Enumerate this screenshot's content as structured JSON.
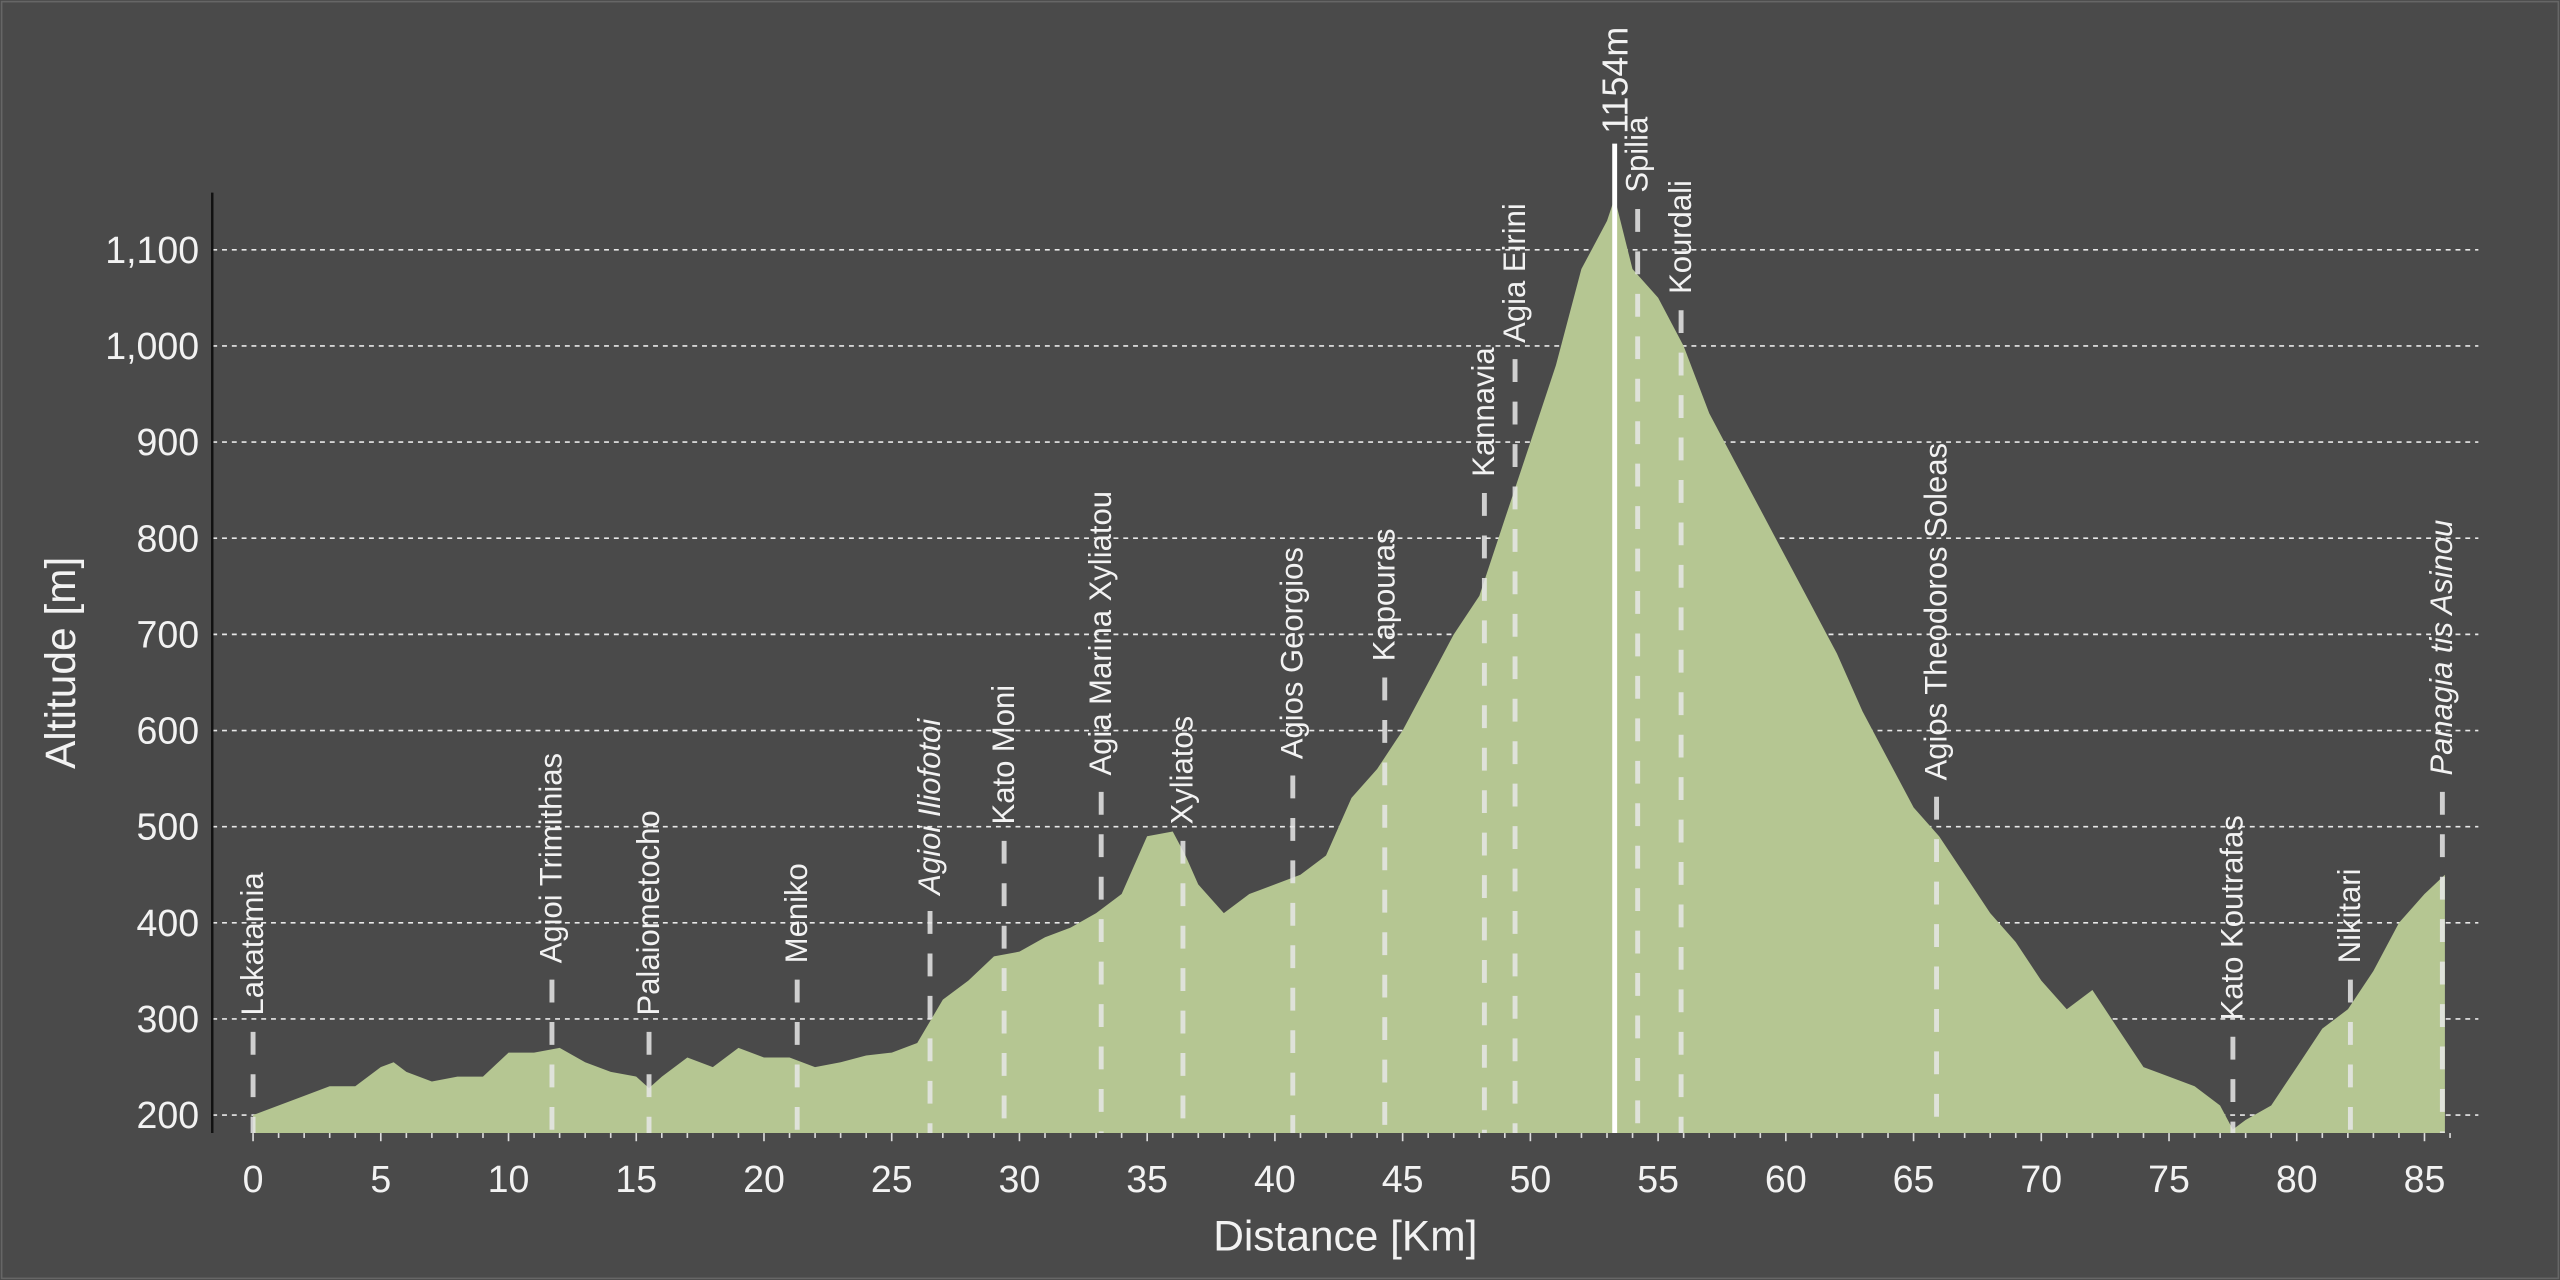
{
  "chart_data": {
    "type": "area",
    "title": "",
    "xlabel": "Distance [Km]",
    "ylabel": "Altitude [m]",
    "xlim": [
      0,
      86
    ],
    "ylim": [
      180,
      1160
    ],
    "grid": "horizontal dashed",
    "x_ticks": [
      0,
      5,
      10,
      15,
      20,
      25,
      30,
      35,
      40,
      45,
      50,
      55,
      60,
      65,
      70,
      75,
      80,
      85
    ],
    "y_ticks": [
      200,
      300,
      400,
      500,
      600,
      700,
      800,
      900,
      1000,
      1100
    ],
    "y_tick_labels": [
      "200",
      "300",
      "400",
      "500",
      "600",
      "700",
      "800",
      "900",
      "1,000",
      "1,100"
    ],
    "peak": {
      "distance": 53.3,
      "altitude": 1154,
      "label": "1154m"
    },
    "fill_color": "#b5c692",
    "background_color": "#4a4a4a",
    "profile": [
      [
        0,
        200
      ],
      [
        1,
        210
      ],
      [
        2,
        220
      ],
      [
        3,
        230
      ],
      [
        4,
        230
      ],
      [
        5,
        250
      ],
      [
        5.5,
        255
      ],
      [
        6,
        245
      ],
      [
        7,
        235
      ],
      [
        8,
        240
      ],
      [
        9,
        240
      ],
      [
        10,
        265
      ],
      [
        11,
        265
      ],
      [
        12,
        270
      ],
      [
        13,
        255
      ],
      [
        14,
        245
      ],
      [
        15,
        240
      ],
      [
        15.5,
        228
      ],
      [
        16,
        240
      ],
      [
        17,
        260
      ],
      [
        18,
        250
      ],
      [
        19,
        270
      ],
      [
        20,
        260
      ],
      [
        21,
        260
      ],
      [
        22,
        250
      ],
      [
        23,
        255
      ],
      [
        24,
        262
      ],
      [
        25,
        265
      ],
      [
        26,
        275
      ],
      [
        27,
        320
      ],
      [
        28,
        340
      ],
      [
        29,
        365
      ],
      [
        30,
        370
      ],
      [
        31,
        385
      ],
      [
        32,
        395
      ],
      [
        33,
        410
      ],
      [
        34,
        430
      ],
      [
        35,
        490
      ],
      [
        36,
        495
      ],
      [
        36.5,
        470
      ],
      [
        37,
        440
      ],
      [
        38,
        410
      ],
      [
        39,
        430
      ],
      [
        40,
        440
      ],
      [
        41,
        450
      ],
      [
        42,
        470
      ],
      [
        43,
        530
      ],
      [
        44,
        560
      ],
      [
        45,
        600
      ],
      [
        46,
        650
      ],
      [
        47,
        700
      ],
      [
        48,
        740
      ],
      [
        49,
        820
      ],
      [
        50,
        900
      ],
      [
        51,
        980
      ],
      [
        52,
        1080
      ],
      [
        53,
        1130
      ],
      [
        53.3,
        1154
      ],
      [
        54,
        1080
      ],
      [
        55,
        1050
      ],
      [
        56,
        1000
      ],
      [
        57,
        930
      ],
      [
        58,
        880
      ],
      [
        59,
        830
      ],
      [
        60,
        780
      ],
      [
        61,
        730
      ],
      [
        62,
        680
      ],
      [
        63,
        620
      ],
      [
        64,
        570
      ],
      [
        65,
        520
      ],
      [
        66,
        490
      ],
      [
        67,
        450
      ],
      [
        68,
        410
      ],
      [
        69,
        380
      ],
      [
        70,
        340
      ],
      [
        71,
        310
      ],
      [
        72,
        330
      ],
      [
        73,
        290
      ],
      [
        74,
        250
      ],
      [
        75,
        240
      ],
      [
        76,
        230
      ],
      [
        77,
        210
      ],
      [
        77.5,
        185
      ],
      [
        78,
        195
      ],
      [
        79,
        210
      ],
      [
        80,
        250
      ],
      [
        81,
        290
      ],
      [
        82,
        310
      ],
      [
        83,
        350
      ],
      [
        84,
        400
      ],
      [
        85,
        430
      ],
      [
        85.8,
        450
      ]
    ],
    "waypoints": [
      {
        "name": "Lakatamia",
        "km": 0,
        "italic": false
      },
      {
        "name": "Agioi Trimithias",
        "km": 11.7,
        "italic": false
      },
      {
        "name": "Palaiometocho",
        "km": 15.5,
        "italic": false
      },
      {
        "name": "Meniko",
        "km": 21.3,
        "italic": false
      },
      {
        "name": "Agioi Iliofotoi",
        "km": 26.5,
        "italic": true
      },
      {
        "name": "Kato Moni",
        "km": 29.4,
        "italic": false
      },
      {
        "name": "Agia Marina Xyliatou",
        "km": 33.2,
        "italic": false
      },
      {
        "name": "Xyliatos",
        "km": 36.4,
        "italic": false
      },
      {
        "name": "Agios Georgios",
        "km": 40.7,
        "italic": false
      },
      {
        "name": "Kapouras",
        "km": 44.3,
        "italic": false
      },
      {
        "name": "Kannavia",
        "km": 48.2,
        "italic": false
      },
      {
        "name": "Agia Eirini",
        "km": 49.4,
        "italic": false
      },
      {
        "name": "Spilia",
        "km": 54.2,
        "italic": false
      },
      {
        "name": "Kourdali",
        "km": 55.9,
        "italic": false
      },
      {
        "name": "Agios Theodoros Soleas",
        "km": 65.9,
        "italic": false
      },
      {
        "name": "Kato Koutrafas",
        "km": 77.5,
        "italic": false
      },
      {
        "name": "Nikitari",
        "km": 82.1,
        "italic": false
      },
      {
        "name": "Panagia tis Asinou",
        "km": 85.7,
        "italic": true
      }
    ]
  }
}
